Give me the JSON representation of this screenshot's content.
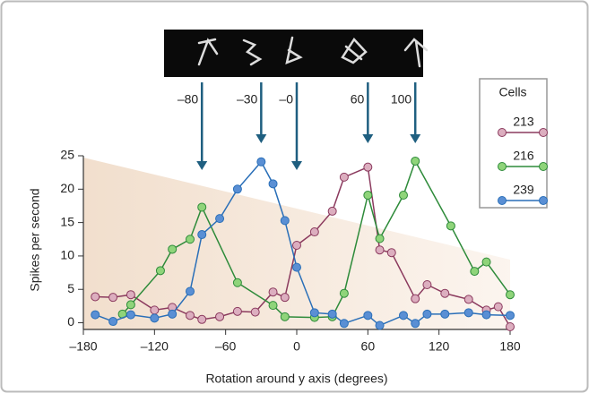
{
  "chart_data": {
    "type": "line",
    "y_label": "Spikes per second",
    "x_label": "Rotation around y axis (degrees)",
    "legend_title": "Cells",
    "xlim": [
      -180,
      180
    ],
    "ylim": [
      -1,
      25
    ],
    "xticks": [
      {
        "value": -180,
        "label": "–180"
      },
      {
        "value": -120,
        "label": "–120"
      },
      {
        "value": -60,
        "label": "–60"
      },
      0,
      60,
      120,
      180
    ],
    "yticks": [
      0,
      5,
      10,
      15,
      20,
      25
    ],
    "arrows": [
      {
        "label": "–80",
        "x": -80
      },
      {
        "label": "–30",
        "x": -30
      },
      {
        "label": "–0",
        "x": 0
      },
      {
        "label": "60",
        "x": 60
      },
      {
        "label": "100",
        "x": 100
      }
    ],
    "series": [
      {
        "name": "213",
        "color": "#8b3a5e",
        "marker": "#dcaebf",
        "x": [
          -170,
          -155,
          -140,
          -120,
          -105,
          -90,
          -80,
          -65,
          -50,
          -35,
          -20,
          -10,
          0,
          15,
          30,
          40,
          60,
          70,
          80,
          100,
          110,
          125,
          145,
          160,
          170,
          180
        ],
        "values": [
          3.9,
          3.8,
          4.2,
          1.9,
          2.3,
          1.1,
          0.5,
          0.9,
          1.7,
          1.6,
          4.6,
          3.8,
          11.6,
          13.6,
          16.7,
          21.8,
          23.3,
          10.9,
          10.5,
          3.6,
          5.7,
          4.4,
          3.5,
          1.9,
          2.4,
          -0.6
        ]
      },
      {
        "name": "216",
        "color": "#2e8b3a",
        "marker": "#8fd47a",
        "x": [
          -147,
          -140,
          -115,
          -105,
          -90,
          -80,
          -50,
          -20,
          -10,
          15,
          30,
          40,
          60,
          70,
          90,
          100,
          130,
          150,
          160,
          180
        ],
        "values": [
          1.3,
          2.7,
          7.8,
          11.0,
          12.5,
          17.3,
          6.0,
          2.6,
          0.9,
          0.8,
          0.9,
          4.4,
          19.1,
          12.6,
          19.1,
          24.2,
          14.5,
          7.7,
          9.1,
          4.2
        ]
      },
      {
        "name": "239",
        "color": "#2a6fb8",
        "marker": "#5a8fd4",
        "x": [
          -170,
          -155,
          -140,
          -120,
          -105,
          -90,
          -80,
          -65,
          -50,
          -30,
          -20,
          -10,
          0,
          15,
          30,
          40,
          60,
          70,
          90,
          100,
          110,
          125,
          145,
          160,
          180
        ],
        "values": [
          1.2,
          0.2,
          1.2,
          0.7,
          1.3,
          4.7,
          13.2,
          15.6,
          20.0,
          24.1,
          20.8,
          15.3,
          8.3,
          1.5,
          1.3,
          -0.1,
          1.1,
          -0.4,
          1.1,
          -0.1,
          1.3,
          1.3,
          1.5,
          1.2,
          1.1
        ]
      }
    ]
  }
}
